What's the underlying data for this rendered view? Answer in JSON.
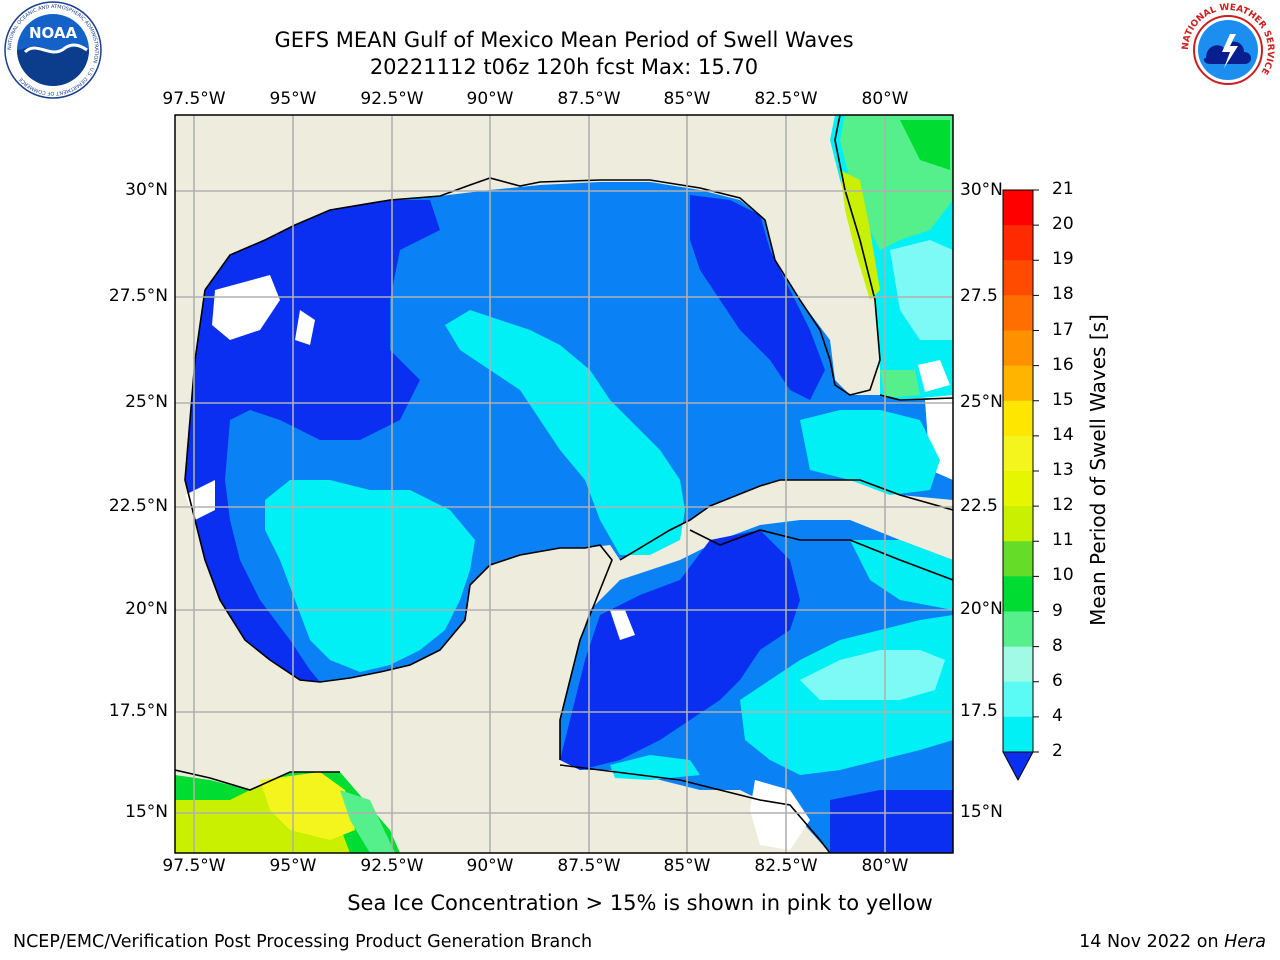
{
  "title": {
    "line1": "GEFS MEAN Gulf of Mexico Mean Period of Swell Waves",
    "line2": "20221112 t06z 120h fcst   Max: 15.70"
  },
  "map": {
    "lon_labels": [
      "97.5°W",
      "95°W",
      "92.5°W",
      "90°W",
      "87.5°W",
      "85°W",
      "82.5°W",
      "80°W"
    ],
    "lat_labels_left": [
      "30°N",
      "27.5°N",
      "25°N",
      "22.5°N",
      "20°N",
      "17.5°N",
      "15°N"
    ],
    "lat_labels_right": [
      "30°N",
      "27.5",
      "25°N",
      "22.5",
      "20°N",
      "17.5",
      "15°N"
    ],
    "land_color": "#eeecdc",
    "ocean_colors": {
      "dark_blue": "#0a2ff0",
      "blue": "#0a82f5",
      "cyan": "#00f0f5",
      "light_cyan": "#7dfaf5",
      "green": "#55f08c",
      "bright_green": "#00dc32",
      "yellow_green": "#c8f000",
      "yellow": "#f5f51e"
    }
  },
  "colorbar": {
    "title": "Mean Period of Swell Waves [s]",
    "ticks": [
      "21",
      "20",
      "19",
      "18",
      "17",
      "16",
      "15",
      "14",
      "13",
      "12",
      "11",
      "10",
      "9",
      "8",
      "6",
      "4",
      "2"
    ],
    "colors": [
      "#ff0000",
      "#ff2a00",
      "#ff4b00",
      "#ff6e00",
      "#ff9100",
      "#ffb400",
      "#ffe600",
      "#f5f51e",
      "#e6f500",
      "#c8f000",
      "#64dc28",
      "#00dc32",
      "#55f08c",
      "#a0fae6",
      "#5afaf5",
      "#00f0f5",
      "#0a82f5",
      "#0a2ff0"
    ]
  },
  "seaice_note": "Sea Ice Concentration > 15% is shown in pink to yellow",
  "footer": {
    "left": "NCEP/EMC/Verification Post Processing Product Generation Branch",
    "date": "14 Nov 2022 on",
    "host": "Hera"
  },
  "logos": {
    "noaa_icon": "noaa-logo-icon",
    "nws_icon": "nws-logo-icon",
    "noaa_text": "NOAA",
    "noaa_ring_text": "NATIONAL OCEANIC AND ATMOSPHERIC ADMINISTRATION · U.S. DEPARTMENT OF COMMERCE",
    "nws_ring_text": "NATIONAL WEATHER SERVICE"
  }
}
